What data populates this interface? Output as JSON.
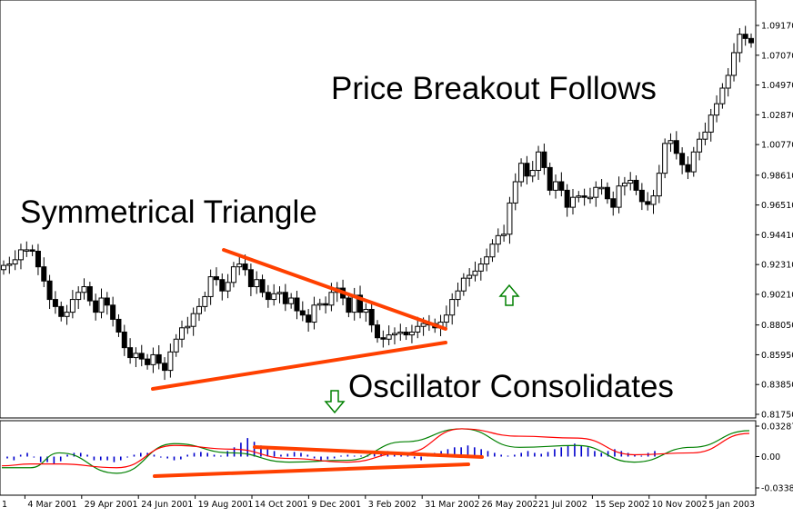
{
  "chart_data": [
    {
      "type": "candlestick",
      "panel": "price",
      "x_ticks": [
        "4 Mar 2001",
        "29 Apr 2001",
        "24 Jun 2001",
        "19 Aug 2001",
        "14 Oct 2001",
        "9 Dec 2001",
        "3 Feb 2002",
        "31 Mar 2002",
        "26 May 2002",
        "21 Jul 2002",
        "15 Sep 2002",
        "10 Nov 2002",
        "5 Jan 2003"
      ],
      "y_ticks": [
        "1.09170",
        "1.07070",
        "1.04970",
        "1.02870",
        "1.00770",
        "0.98610",
        "0.96510",
        "0.94410",
        "0.92310",
        "0.90210",
        "0.88050",
        "0.85950",
        "0.83850",
        "0.81750"
      ],
      "ylim": [
        0.8175,
        1.0917
      ],
      "left_edge_tick_fragment": "1",
      "candles_close": [
        0.9225,
        0.9235,
        0.9265,
        0.9335,
        0.9335,
        0.9325,
        0.9215,
        0.9115,
        0.8985,
        0.8935,
        0.8865,
        0.8895,
        0.8985,
        0.9035,
        0.9075,
        0.8975,
        0.8895,
        0.8995,
        0.8945,
        0.8845,
        0.8755,
        0.8645,
        0.8575,
        0.8605,
        0.8565,
        0.8525,
        0.8595,
        0.8535,
        0.8485,
        0.8615,
        0.8705,
        0.8785,
        0.8795,
        0.8885,
        0.8935,
        0.9005,
        0.9145,
        0.9125,
        0.9045,
        0.9105,
        0.9215,
        0.9235,
        0.9195,
        0.9075,
        0.9125,
        0.9035,
        0.8985,
        0.9025,
        0.9035,
        0.8955,
        0.8995,
        0.8905,
        0.8875,
        0.8825,
        0.8945,
        0.8955,
        0.8945,
        0.9035,
        0.9065,
        0.8995,
        0.8895,
        0.9015,
        0.8895,
        0.8915,
        0.8805,
        0.8715,
        0.8705,
        0.8735,
        0.8745,
        0.8755,
        0.8735,
        0.8755,
        0.8795,
        0.8815,
        0.8815,
        0.8785,
        0.8825,
        0.8875,
        0.8985,
        0.9045,
        0.9135,
        0.9155,
        0.9185,
        0.9235,
        0.9285,
        0.9375,
        0.9435,
        0.9445,
        0.9665,
        0.9815,
        0.9945,
        0.9855,
        0.9895,
        1.0025,
        0.9915,
        0.9755,
        0.9815,
        0.9755,
        0.9635,
        0.9705,
        0.9715,
        0.9705,
        0.9705,
        0.9775,
        0.9775,
        0.9695,
        0.9635,
        0.9785,
        0.9805,
        0.9825,
        0.9755,
        0.9675,
        0.9655,
        0.9715,
        0.9875,
        1.0085,
        1.0105,
        1.0015,
        0.9935,
        0.9885,
        1.0025,
        1.0115,
        1.0165,
        1.0285,
        1.0365,
        1.0475,
        1.0565,
        1.0725,
        1.0855,
        1.0825,
        1.0795
      ]
    },
    {
      "type": "line",
      "panel": "oscillator",
      "y_ticks": [
        "0.032871",
        "0.00",
        "-0.033846"
      ],
      "ylim": [
        -0.033846,
        0.032871
      ],
      "x": [
        0,
        5,
        10,
        20,
        30,
        40,
        50,
        60,
        70,
        80,
        90,
        100,
        110,
        120,
        130
      ],
      "series": [
        {
          "color": "#008000",
          "values": [
            -0.012,
            -0.012,
            0.004,
            -0.018,
            0.014,
            0.004,
            -0.006,
            -0.004,
            0.016,
            0.03,
            0.01,
            0.012,
            -0.006,
            0.01,
            0.028
          ]
        },
        {
          "color": "#ff0000",
          "values": [
            -0.01,
            -0.008,
            -0.008,
            -0.012,
            0.012,
            0.008,
            -0.002,
            -0.006,
            0.004,
            0.03,
            0.022,
            0.02,
            0.002,
            0.004,
            0.025
          ]
        }
      ],
      "histogram": [
        -0.002,
        -0.004,
        0.002,
        0.004,
        -0.001,
        -0.006,
        -0.006,
        -0.008,
        -0.005,
        0.002,
        0.004,
        0.004,
        0.002,
        -0.004,
        -0.004,
        -0.004,
        -0.006,
        -0.004,
        -0.001,
        0.002,
        0.004,
        0.004,
        0.002,
        -0.001,
        -0.002,
        -0.004,
        -0.003,
        0.002,
        0.004,
        0.005,
        0.004,
        0.002,
        0.001,
        0.006,
        0.01,
        0.015,
        0.02,
        0.016,
        0.012,
        0.01,
        0.006,
        0.002,
        0.003,
        0.005,
        0.004,
        0.002,
        -0.002,
        -0.004,
        -0.003,
        -0.002,
        0.001,
        0.002,
        0.001,
        0.001,
        0.002,
        0.003,
        0.005,
        0.006,
        0.004,
        0.002,
        0.001,
        -0.002,
        -0.004,
        0.001,
        0.004,
        0.006,
        0.008,
        0.01,
        0.01,
        0.012,
        0.01,
        0.008,
        0.006,
        0.004,
        0.002,
        0.001,
        0.002,
        0.004,
        0.006,
        0.004,
        0.003,
        0.005,
        0.008,
        0.01,
        0.012,
        0.014,
        0.012,
        0.01,
        0.006,
        0.004,
        0.006,
        0.008,
        0.006,
        0.004,
        0.002,
        0.001,
        0.004,
        0.006
      ]
    }
  ],
  "annotations": {
    "symmetrical_triangle": "Symmetrical Triangle",
    "price_breakout": "Price Breakout Follows",
    "oscillator_consolidates": "Oscillator Consolidates"
  },
  "colors": {
    "trendline": "#ff4000",
    "arrow": "#008000"
  }
}
